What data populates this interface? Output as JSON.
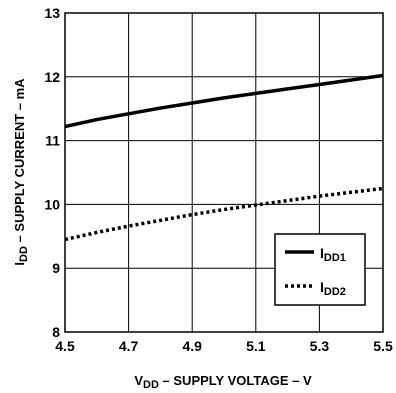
{
  "chart_data": {
    "type": "line",
    "xlabel": {
      "main": "V",
      "sub": "DD",
      "rest": " – SUPPLY VOLTAGE – V"
    },
    "ylabel": {
      "main": "I",
      "sub": "DD",
      "rest": " – SUPPLY CURRENT – mA"
    },
    "xlim": [
      4.5,
      5.5
    ],
    "ylim": [
      8,
      13
    ],
    "x_ticks": [
      "4.5",
      "4.7",
      "4.9",
      "5.1",
      "5.3",
      "5.5"
    ],
    "y_ticks": [
      "8",
      "9",
      "10",
      "11",
      "12",
      "13"
    ],
    "grid": true,
    "legend_position": "bottom-right",
    "series": [
      {
        "name": {
          "main": "I",
          "sub": "DD1"
        },
        "style": "solid",
        "color": "#000000",
        "x": [
          4.5,
          4.6,
          4.7,
          4.8,
          4.9,
          5.0,
          5.1,
          5.2,
          5.3,
          5.4,
          5.5
        ],
        "y": [
          11.22,
          11.33,
          11.42,
          11.51,
          11.59,
          11.67,
          11.74,
          11.81,
          11.88,
          11.95,
          12.02
        ]
      },
      {
        "name": {
          "main": "I",
          "sub": "DD2"
        },
        "style": "dotted",
        "color": "#000000",
        "x": [
          4.5,
          4.6,
          4.7,
          4.8,
          4.9,
          5.0,
          5.1,
          5.2,
          5.3,
          5.4,
          5.5
        ],
        "y": [
          9.45,
          9.56,
          9.66,
          9.75,
          9.84,
          9.92,
          9.99,
          10.06,
          10.13,
          10.19,
          10.25
        ]
      }
    ]
  }
}
